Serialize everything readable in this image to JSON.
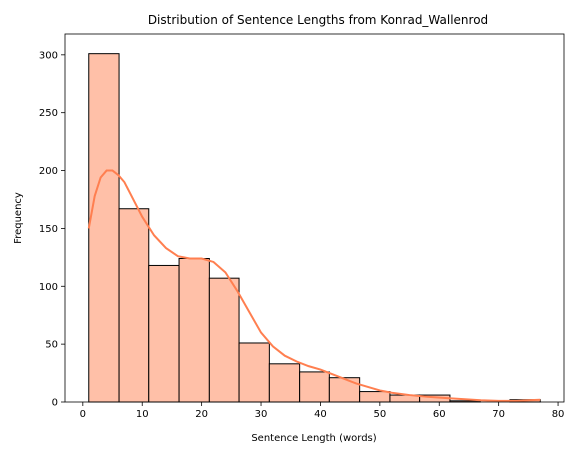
{
  "chart_data": {
    "type": "bar",
    "subtype": "histogram",
    "title": "Distribution of Sentence Lengths from Konrad_Wallenrod",
    "xlabel": "Sentence Length (words)",
    "ylabel": "Frequency",
    "xlim": [
      -3,
      81
    ],
    "ylim": [
      0,
      318
    ],
    "xticks": [
      0,
      10,
      20,
      30,
      40,
      50,
      60,
      70,
      80
    ],
    "yticks": [
      0,
      50,
      100,
      150,
      200,
      250,
      300
    ],
    "grid": false,
    "legend": "none",
    "bar_color": "#ffc0a8",
    "edge_color": "#000000",
    "kde_color": "#ff7f50",
    "bins": [
      {
        "x0": 1.0,
        "x1": 6.1,
        "value": 301
      },
      {
        "x0": 6.1,
        "x1": 11.1,
        "value": 167
      },
      {
        "x0": 11.1,
        "x1": 16.2,
        "value": 118
      },
      {
        "x0": 16.2,
        "x1": 21.3,
        "value": 124
      },
      {
        "x0": 21.3,
        "x1": 26.3,
        "value": 107
      },
      {
        "x0": 26.3,
        "x1": 31.4,
        "value": 51
      },
      {
        "x0": 31.4,
        "x1": 36.5,
        "value": 33
      },
      {
        "x0": 36.5,
        "x1": 41.5,
        "value": 26
      },
      {
        "x0": 41.5,
        "x1": 46.6,
        "value": 21
      },
      {
        "x0": 46.6,
        "x1": 51.7,
        "value": 9
      },
      {
        "x0": 51.7,
        "x1": 56.7,
        "value": 6
      },
      {
        "x0": 56.7,
        "x1": 61.8,
        "value": 6
      },
      {
        "x0": 61.8,
        "x1": 66.9,
        "value": 1
      },
      {
        "x0": 66.9,
        "x1": 71.9,
        "value": 0
      },
      {
        "x0": 71.9,
        "x1": 77.0,
        "value": 2
      }
    ],
    "kde": {
      "x": [
        1,
        2,
        3,
        4,
        5,
        6,
        7,
        8,
        10,
        12,
        14,
        16,
        18,
        20,
        22,
        24,
        26,
        28,
        30,
        32,
        34,
        36,
        38,
        40,
        42,
        44,
        46,
        48,
        50,
        52,
        55,
        58,
        61,
        64,
        67,
        70,
        73,
        75,
        77
      ],
      "y": [
        150,
        178,
        194,
        200,
        200,
        196,
        190,
        180,
        160,
        144,
        133,
        126,
        124,
        124,
        121,
        112,
        96,
        78,
        60,
        48,
        40,
        35,
        31,
        28,
        24,
        20,
        16,
        13,
        10,
        8,
        6,
        4.5,
        3.5,
        2.5,
        1.5,
        1,
        1,
        1.5,
        2
      ]
    }
  }
}
